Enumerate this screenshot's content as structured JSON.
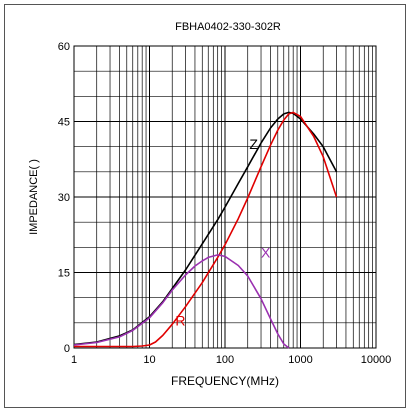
{
  "chart_data": {
    "type": "line",
    "title": "FBHA0402-330-302R",
    "xlabel": "FREQUENCY(MHz)",
    "ylabel": "IMPEDANCE(   )",
    "x_scale": "log",
    "xlim": [
      1,
      10000
    ],
    "ylim": [
      0,
      60
    ],
    "x_ticks": [
      1,
      10,
      100,
      1000,
      10000
    ],
    "x_tick_labels": [
      "1",
      "10",
      "100",
      "1000",
      "10000"
    ],
    "y_ticks": [
      0,
      15,
      30,
      45,
      60
    ],
    "y_tick_labels": [
      "0",
      "15",
      "30",
      "45",
      "60"
    ],
    "grid": true,
    "legend": "none",
    "series": [
      {
        "name": "Z",
        "color": "#000000",
        "x": [
          1,
          2,
          4,
          6,
          10,
          15,
          20,
          30,
          50,
          80,
          100,
          150,
          200,
          300,
          400,
          500,
          600,
          700,
          800,
          1000,
          1500,
          2000,
          3000
        ],
        "y": [
          0.7,
          1.2,
          2.4,
          3.6,
          6.2,
          9.2,
          11.8,
          15.5,
          20.7,
          25.5,
          28.0,
          32.7,
          36.0,
          40.7,
          43.7,
          45.5,
          46.5,
          46.8,
          46.6,
          45.5,
          42.5,
          40.0,
          35.0
        ]
      },
      {
        "name": "R",
        "color": "#e00000",
        "x": [
          1,
          3,
          6,
          8,
          10,
          12,
          15,
          20,
          30,
          50,
          80,
          100,
          150,
          200,
          300,
          400,
          500,
          600,
          700,
          800,
          1000,
          1500,
          2000,
          3000
        ],
        "y": [
          0.3,
          0.3,
          0.3,
          0.4,
          0.6,
          1.2,
          2.5,
          4.7,
          8.2,
          13.0,
          18.0,
          20.5,
          25.7,
          29.8,
          36.0,
          40.3,
          43.3,
          45.3,
          46.5,
          46.8,
          46.0,
          42.0,
          38.0,
          30.0
        ]
      },
      {
        "name": "X",
        "color": "#9a30b0",
        "x": [
          1,
          2,
          4,
          6,
          10,
          15,
          20,
          30,
          40,
          50,
          60,
          80,
          100,
          150,
          200,
          300,
          400,
          500,
          600,
          700
        ],
        "y": [
          0.6,
          1.1,
          2.2,
          3.5,
          6.0,
          9.0,
          11.5,
          14.5,
          16.3,
          17.3,
          18.0,
          18.5,
          18.2,
          16.4,
          14.3,
          9.8,
          5.8,
          2.8,
          0.8,
          0.0
        ]
      }
    ],
    "annotations": [
      {
        "text": "Z",
        "color": "#000000",
        "x": 210,
        "y": 39.5
      },
      {
        "text": "R",
        "color": "#e00000",
        "x": 22,
        "y": 4.5
      },
      {
        "text": "X",
        "color": "#9a30b0",
        "x": 300,
        "y": 18
      }
    ]
  }
}
